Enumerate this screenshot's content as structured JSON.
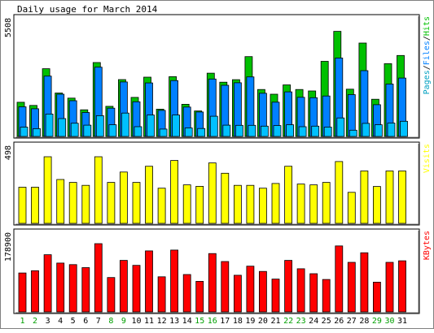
{
  "chart_data": {
    "type": "bar",
    "title": "Daily usage for March 2014",
    "days": [
      "1",
      "2",
      "3",
      "4",
      "5",
      "6",
      "7",
      "8",
      "9",
      "10",
      "11",
      "12",
      "13",
      "14",
      "15",
      "16",
      "17",
      "18",
      "19",
      "20",
      "21",
      "22",
      "23",
      "24",
      "25",
      "26",
      "27",
      "28",
      "29",
      "30",
      "31"
    ],
    "weekend_days": [
      "1",
      "2",
      "8",
      "9",
      "15",
      "16",
      "22",
      "23",
      "29",
      "30"
    ],
    "panels": [
      {
        "id": "hits",
        "ymax_label": "5508",
        "ymax": 5508,
        "label_parts": [
          {
            "text": "Pages",
            "color": "#00a0c0"
          },
          {
            "text": "/",
            "color": "#000000"
          },
          {
            "text": "Files",
            "color": "#0080ff"
          },
          {
            "text": "/",
            "color": "#000000"
          },
          {
            "text": "Hits",
            "color": "#00c000"
          }
        ],
        "series": [
          {
            "name": "Hits",
            "color": "#00c000",
            "values": [
              1758,
              1596,
              3480,
              2232,
              1968,
              1368,
              3796,
              1549,
              2920,
              2009,
              3047,
              1400,
              3070,
              1653,
              1312,
              3250,
              2786,
              2916,
              4100,
              2410,
              2170,
              2650,
              2410,
              2338,
              3860,
              5400,
              2430,
              4800,
              1910,
              3740,
              4160
            ]
          },
          {
            "name": "Files",
            "color": "#0080ff",
            "values": [
              1525,
              1422,
              3100,
              2168,
              1838,
              1233,
              3558,
              1451,
              2800,
              1780,
              2750,
              1340,
              2870,
              1510,
              1255,
              2950,
              2630,
              2760,
              3060,
              2220,
              1760,
              2290,
              2010,
              1990,
              2080,
              4030,
              2150,
              3380,
              1630,
              2690,
              3000
            ]
          },
          {
            "name": "Pages",
            "color": "#00c0ff",
            "values": [
              480,
              400,
              1150,
              920,
              680,
              580,
              1070,
              600,
              1200,
              500,
              1100,
              380,
              1100,
              440,
              410,
              1040,
              580,
              570,
              570,
              530,
              560,
              600,
              500,
              530,
              480,
              950,
              320,
              670,
              600,
              690,
              780
            ]
          }
        ]
      },
      {
        "id": "visits",
        "ymax_label": "498",
        "ymax": 498,
        "label_parts": [
          {
            "text": "Visits",
            "color": "#ffff00"
          }
        ],
        "series": [
          {
            "name": "Visits",
            "color": "#ffff00",
            "values": [
              270,
              270,
              498,
              328,
              306,
              284,
              498,
              306,
              384,
              306,
              427,
              263,
              470,
              288,
              277,
              452,
              375,
              284,
              284,
              263,
              298,
              427,
              294,
              288,
              306,
              462,
              232,
              392,
              276,
              392,
              392
            ]
          }
        ]
      },
      {
        "id": "kbytes",
        "ymax_label": "178900",
        "ymax": 178900,
        "label_parts": [
          {
            "text": "KBytes",
            "color": "#ff0000"
          }
        ],
        "series": [
          {
            "name": "KBytes",
            "color": "#ff0000",
            "values": [
              102000,
              108000,
              150000,
              128000,
              124000,
              116000,
              178900,
              90000,
              135000,
              122000,
              160000,
              92000,
              162000,
              98000,
              80000,
              153000,
              132000,
              96000,
              120000,
              106000,
              86000,
              135000,
              113000,
              100000,
              85000,
              173000,
              130000,
              155000,
              78000,
              130000,
              134000
            ]
          }
        ]
      }
    ]
  }
}
